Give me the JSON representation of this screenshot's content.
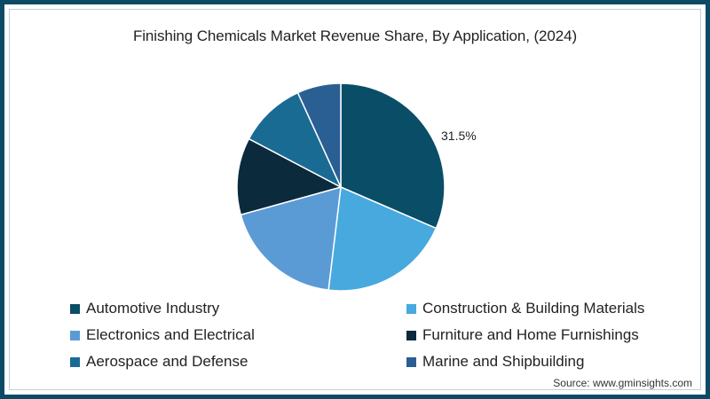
{
  "title": "Finishing Chemicals Market Revenue Share, By Application, (2024)",
  "source": "Source: www.gminsights.com",
  "chart_data": {
    "type": "pie",
    "title": "Finishing Chemicals Market Revenue Share, By Application, (2024)",
    "categories": [
      "Automotive Industry",
      "Construction & Building Materials",
      "Electronics and Electrical",
      "Furniture and Home Furnishings",
      "Aerospace and Defense",
      "Marine and Shipbuilding"
    ],
    "values": [
      31.5,
      20.4,
      18.8,
      12.0,
      10.5,
      6.8
    ],
    "colors": [
      "#0a4d66",
      "#47a9de",
      "#5b9bd5",
      "#0b2a3c",
      "#1a6b94",
      "#2a5f94"
    ],
    "data_labels": [
      "31.5%",
      "",
      "",
      "",
      "",
      ""
    ],
    "legend_position": "bottom",
    "start_angle": "12 o'clock, clockwise"
  },
  "legend": [
    {
      "label": "Automotive Industry",
      "color": "#0a4d66"
    },
    {
      "label": "Construction & Building Materials",
      "color": "#47a9de"
    },
    {
      "label": "Electronics and Electrical",
      "color": "#5b9bd5"
    },
    {
      "label": "Furniture and Home Furnishings",
      "color": "#0b2a3c"
    },
    {
      "label": "Aerospace and Defense",
      "color": "#1a6b94"
    },
    {
      "label": "Marine and Shipbuilding",
      "color": "#2a5f94"
    }
  ],
  "data_label": "31.5%"
}
